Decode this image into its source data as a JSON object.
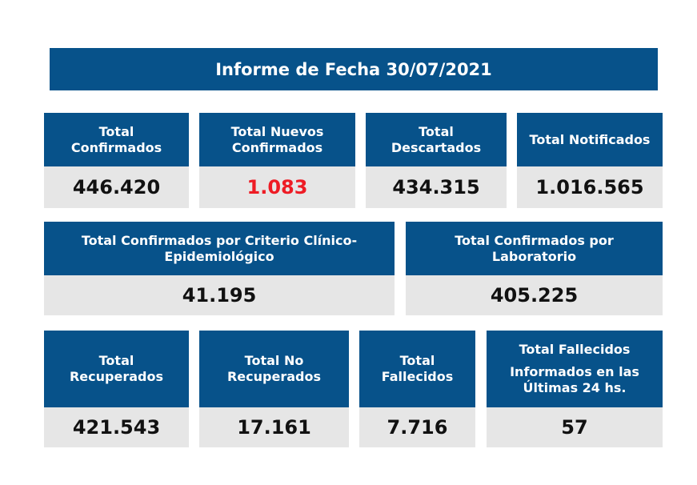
{
  "report": {
    "title": "Informe de Fecha 30/07/2021"
  },
  "row1": [
    {
      "label_lines": [
        "Total",
        "Confirmados"
      ],
      "value": "446.420",
      "highlight": false
    },
    {
      "label_lines": [
        "Total Nuevos",
        "Confirmados"
      ],
      "value": "1.083",
      "highlight": true
    },
    {
      "label_lines": [
        "Total",
        "Descartados"
      ],
      "value": "434.315",
      "highlight": false
    },
    {
      "label_lines": [
        "Total Notificados"
      ],
      "value": "1.016.565",
      "highlight": false
    }
  ],
  "row2": [
    {
      "label_lines": [
        "Total Confirmados por Criterio Clínico-",
        "Epidemiológico"
      ],
      "value": "41.195"
    },
    {
      "label_lines": [
        "Total Confirmados por",
        "Laboratorio"
      ],
      "value": "405.225"
    }
  ],
  "row3": [
    {
      "label_lines": [
        "Total",
        "Recuperados"
      ],
      "value": "421.543"
    },
    {
      "label_lines": [
        "Total No",
        "Recuperados"
      ],
      "value": "17.161"
    },
    {
      "label_lines": [
        "Total",
        "Fallecidos"
      ],
      "value": "7.716"
    },
    {
      "label_lines": [
        "Total Fallecidos",
        "Informados en las",
        "Últimas 24 hs."
      ],
      "value": "57"
    }
  ],
  "colors": {
    "header_blue": "#07528a",
    "value_gray": "#e6e6e6",
    "highlight_red": "#ee1c25"
  }
}
